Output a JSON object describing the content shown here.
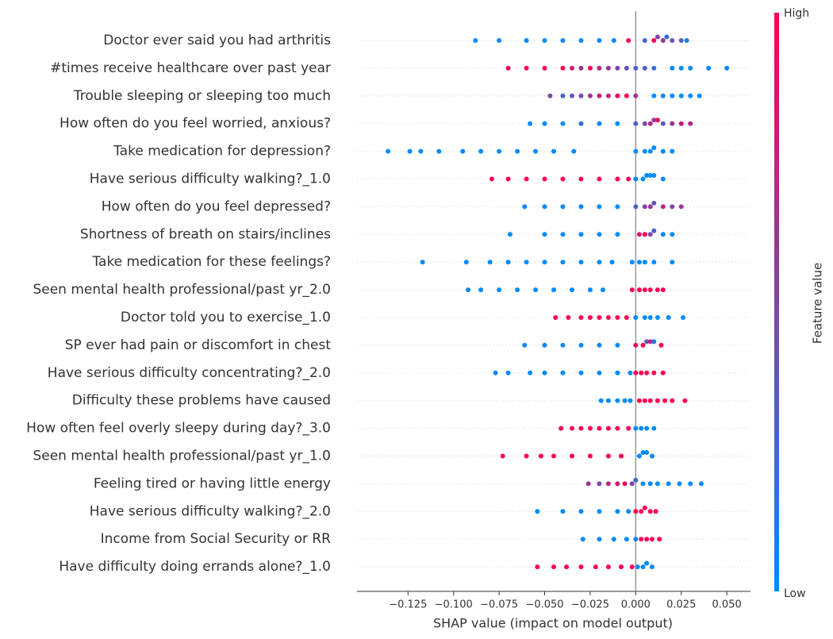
{
  "chart_data": {
    "type": "beeswarm",
    "xlabel": "SHAP value (impact on model output)",
    "xlim": [
      -0.153,
      0.063
    ],
    "xticks": [
      {
        "value": -0.125,
        "label": "−0.125"
      },
      {
        "value": -0.1,
        "label": "−0.100"
      },
      {
        "value": -0.075,
        "label": "−0.075"
      },
      {
        "value": -0.05,
        "label": "−0.050"
      },
      {
        "value": -0.025,
        "label": "−0.025"
      },
      {
        "value": 0,
        "label": "0.000"
      },
      {
        "value": 0.025,
        "label": "0.025"
      },
      {
        "value": 0.05,
        "label": "0.050"
      }
    ],
    "colormap": [
      "#008afb",
      "#ff0052"
    ],
    "colorbar": {
      "label": "Feature value",
      "high": "High",
      "low": "Low"
    },
    "series": [
      {
        "name": "Doctor ever said you had arthritis",
        "values": [
          -0.088,
          -0.075,
          -0.06,
          -0.05,
          -0.04,
          -0.03,
          -0.02,
          -0.012,
          -0.004,
          0.005,
          0.01,
          0.012,
          0.015,
          0.017,
          0.02,
          0.025,
          0.028
        ],
        "feature_values": [
          0,
          0,
          0,
          0,
          0,
          0,
          0,
          0,
          1,
          0.3,
          1,
          0.5,
          0.6,
          0.2,
          0.4,
          0.3,
          0.1
        ]
      },
      {
        "name": "#times receive healthcare over past year",
        "values": [
          -0.07,
          -0.06,
          -0.05,
          -0.04,
          -0.035,
          -0.03,
          -0.025,
          -0.02,
          -0.015,
          -0.01,
          -0.005,
          0,
          0.005,
          0.01,
          0.02,
          0.025,
          0.03,
          0.04,
          0.05
        ],
        "feature_values": [
          0.9,
          1,
          1,
          1,
          0.8,
          0.6,
          1,
          0.7,
          0.6,
          0.5,
          0.4,
          0.3,
          0.3,
          0.2,
          0,
          0,
          0,
          0,
          0
        ]
      },
      {
        "name": "Trouble sleeping or sleeping too much",
        "values": [
          -0.047,
          -0.04,
          -0.035,
          -0.03,
          -0.025,
          -0.02,
          -0.015,
          -0.01,
          -0.005,
          0,
          0.01,
          0.015,
          0.02,
          0.025,
          0.03,
          0.035
        ],
        "feature_values": [
          0.5,
          0.3,
          0.4,
          0.5,
          0.6,
          0.8,
          0.7,
          0.9,
          1,
          0.6,
          0,
          0,
          0,
          0,
          0,
          0
        ]
      },
      {
        "name": "How often do you feel worried, anxious?",
        "values": [
          -0.058,
          -0.05,
          -0.04,
          -0.03,
          -0.02,
          -0.01,
          0,
          0.005,
          0.008,
          0.01,
          0.012,
          0.015,
          0.02,
          0.025,
          0.03
        ],
        "feature_values": [
          0,
          0,
          0,
          0.2,
          0,
          0,
          0.3,
          0.5,
          0.7,
          0.6,
          0.9,
          0.4,
          0.6,
          0.8,
          0.7
        ]
      },
      {
        "name": "Take medication for depression?",
        "values": [
          -0.136,
          -0.124,
          -0.118,
          -0.108,
          -0.095,
          -0.085,
          -0.075,
          -0.065,
          -0.055,
          -0.045,
          -0.034,
          0,
          0.005,
          0.008,
          0.01,
          0.015,
          0.02
        ],
        "feature_values": [
          0,
          0,
          0,
          0,
          0,
          0,
          0,
          0,
          0,
          0,
          0,
          0,
          0,
          0,
          0,
          0,
          0
        ]
      },
      {
        "name": "Have serious difficulty walking?_1.0",
        "values": [
          -0.079,
          -0.07,
          -0.06,
          -0.05,
          -0.04,
          -0.03,
          -0.02,
          -0.01,
          -0.004,
          0,
          0.004,
          0.006,
          0.008,
          0.01,
          0.015
        ],
        "feature_values": [
          1,
          1,
          1,
          1,
          1,
          1,
          1,
          1,
          1,
          0,
          0,
          0,
          0,
          0,
          0
        ]
      },
      {
        "name": "How often do you feel depressed?",
        "values": [
          -0.061,
          -0.05,
          -0.04,
          -0.03,
          -0.02,
          -0.01,
          0,
          0.005,
          0.008,
          0.01,
          0.015,
          0.02,
          0.025
        ],
        "feature_values": [
          0,
          0,
          0,
          0,
          0,
          0,
          0.3,
          0.5,
          0.6,
          0.4,
          0.7,
          0.5,
          0.6
        ]
      },
      {
        "name": "Shortness of breath on stairs/inclines",
        "values": [
          -0.069,
          -0.05,
          -0.04,
          -0.03,
          -0.02,
          -0.01,
          0.002,
          0.005,
          0.008,
          0.01,
          0.015,
          0.02
        ],
        "feature_values": [
          0,
          0,
          0,
          0,
          0,
          0,
          0.8,
          1,
          0.5,
          0.3,
          0,
          0
        ]
      },
      {
        "name": "Take medication for these feelings?",
        "values": [
          -0.117,
          -0.093,
          -0.08,
          -0.07,
          -0.06,
          -0.05,
          -0.04,
          -0.03,
          -0.02,
          -0.013,
          -0.002,
          0.002,
          0.005,
          0.01,
          0.02
        ],
        "feature_values": [
          0,
          0,
          0,
          0,
          0,
          0,
          0,
          0,
          0,
          0,
          0,
          0,
          0,
          0,
          0
        ]
      },
      {
        "name": "Seen mental health professional/past yr_2.0",
        "values": [
          -0.092,
          -0.085,
          -0.075,
          -0.065,
          -0.055,
          -0.045,
          -0.035,
          -0.025,
          -0.018,
          -0.002,
          0.002,
          0.005,
          0.008,
          0.012,
          0.015
        ],
        "feature_values": [
          0,
          0,
          0,
          0,
          0,
          0,
          0,
          0,
          0,
          1,
          1,
          1,
          1,
          1,
          1
        ]
      },
      {
        "name": "Doctor told you to exercise_1.0",
        "values": [
          -0.044,
          -0.037,
          -0.03,
          -0.025,
          -0.02,
          -0.015,
          -0.01,
          -0.005,
          0,
          0.005,
          0.008,
          0.012,
          0.018,
          0.026
        ],
        "feature_values": [
          1,
          1,
          1,
          1,
          1,
          1,
          1,
          1,
          0,
          0,
          0,
          0,
          0,
          0
        ]
      },
      {
        "name": "SP ever had pain or discomfort in chest",
        "values": [
          -0.061,
          -0.05,
          -0.04,
          -0.03,
          -0.02,
          -0.01,
          0,
          0.004,
          0.006,
          0.008,
          0.01,
          0.014
        ],
        "feature_values": [
          0,
          0,
          0,
          0,
          0,
          0,
          0.9,
          1,
          0.4,
          0.7,
          0.2,
          1
        ]
      },
      {
        "name": "Have serious difficulty concentrating?_2.0",
        "values": [
          -0.077,
          -0.07,
          -0.058,
          -0.05,
          -0.04,
          -0.03,
          -0.02,
          -0.01,
          -0.003,
          0,
          0.003,
          0.006,
          0.01,
          0.015
        ],
        "feature_values": [
          0,
          0,
          0,
          0,
          0,
          0,
          0,
          0,
          0,
          1,
          1,
          1,
          1,
          1
        ]
      },
      {
        "name": "Difficulty these problems have caused",
        "values": [
          -0.019,
          -0.015,
          -0.01,
          -0.006,
          -0.003,
          0.002,
          0.005,
          0.008,
          0.012,
          0.016,
          0.02,
          0.027
        ],
        "feature_values": [
          0,
          0,
          0,
          0,
          0,
          1,
          1,
          1,
          1,
          1,
          1,
          1
        ]
      },
      {
        "name": "How often feel overly sleepy during day?_3.0",
        "values": [
          -0.041,
          -0.035,
          -0.03,
          -0.025,
          -0.02,
          -0.015,
          -0.01,
          -0.004,
          0,
          0.003,
          0.006,
          0.01
        ],
        "feature_values": [
          1,
          1,
          1,
          1,
          1,
          1,
          1,
          1,
          0,
          0,
          0,
          0
        ]
      },
      {
        "name": "Seen mental health professional/past yr_1.0",
        "values": [
          -0.073,
          -0.06,
          -0.052,
          -0.045,
          -0.035,
          -0.025,
          -0.015,
          -0.008,
          0.002,
          0.004,
          0.006,
          0.009
        ],
        "feature_values": [
          1,
          1,
          1,
          1,
          1,
          1,
          1,
          1,
          0,
          0,
          0,
          0
        ]
      },
      {
        "name": "Feeling tired or having little energy",
        "values": [
          -0.026,
          -0.02,
          -0.015,
          -0.01,
          -0.006,
          -0.002,
          0,
          0.004,
          0.008,
          0.012,
          0.018,
          0.024,
          0.03,
          0.036
        ],
        "feature_values": [
          0.6,
          0.5,
          0.7,
          0.8,
          0.9,
          0.5,
          0.3,
          0,
          0,
          0,
          0,
          0,
          0,
          0
        ]
      },
      {
        "name": "Have serious difficulty walking?_2.0",
        "values": [
          -0.054,
          -0.04,
          -0.03,
          -0.02,
          -0.01,
          -0.004,
          0,
          0.003,
          0.005,
          0.008,
          0.011
        ],
        "feature_values": [
          0,
          0,
          0,
          0,
          0,
          0,
          1,
          1,
          1,
          1,
          1
        ]
      },
      {
        "name": "Income from Social Security or RR",
        "values": [
          -0.029,
          -0.02,
          -0.012,
          -0.005,
          0,
          0.003,
          0.006,
          0.009,
          0.013
        ],
        "feature_values": [
          0,
          0,
          0,
          0,
          0,
          1,
          1,
          1,
          1
        ]
      },
      {
        "name": "Have difficulty doing errands alone?_1.0",
        "values": [
          -0.054,
          -0.045,
          -0.038,
          -0.03,
          -0.022,
          -0.015,
          -0.008,
          -0.002,
          0.001,
          0.004,
          0.006,
          0.009
        ],
        "feature_values": [
          1,
          1,
          1,
          1,
          1,
          1,
          1,
          1,
          0,
          0,
          0,
          0
        ]
      }
    ]
  }
}
